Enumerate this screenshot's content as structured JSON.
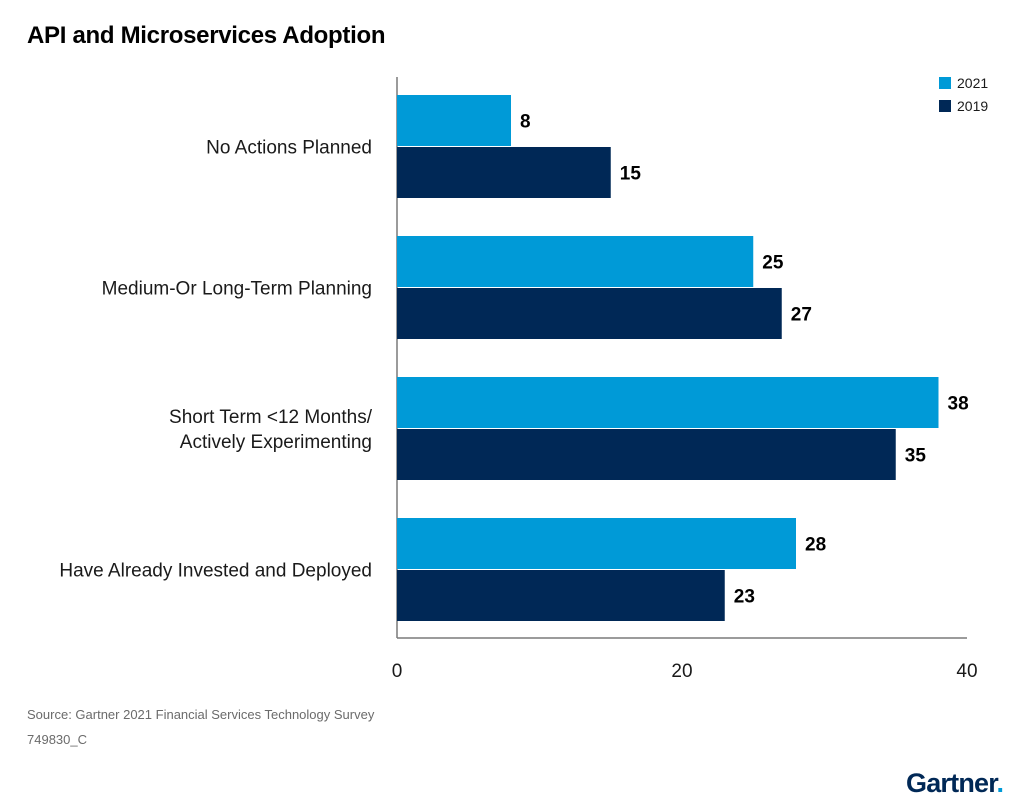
{
  "chart_data": {
    "type": "bar",
    "orientation": "horizontal",
    "title": "API and Microservices Adoption",
    "categories": [
      [
        "No Actions Planned"
      ],
      [
        "Medium-Or Long-Term Planning"
      ],
      [
        "Short Term <12 Months/",
        "Actively Experimenting"
      ],
      [
        "Have Already Invested and Deployed"
      ]
    ],
    "series": [
      {
        "name": "2021",
        "color": "#009ad7",
        "values": [
          8,
          25,
          38,
          28
        ]
      },
      {
        "name": "2019",
        "color": "#002856",
        "values": [
          15,
          27,
          35,
          23
        ]
      }
    ],
    "xlim": [
      0,
      40
    ],
    "xticks": [
      "0",
      "20",
      "40"
    ],
    "legend": "top-right",
    "grid": false
  },
  "footer": {
    "source": "Source: Gartner 2021 Financial Services Technology Survey",
    "code": "749830_C",
    "logo": "Gartner",
    "logo_dot": "."
  }
}
